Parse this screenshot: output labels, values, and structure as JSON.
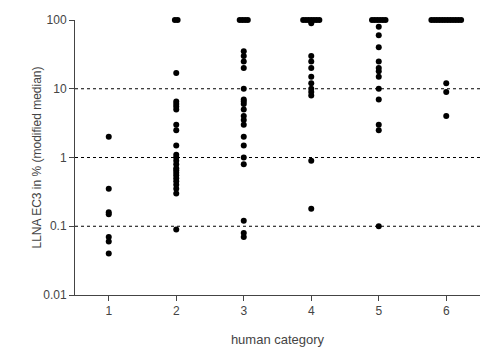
{
  "chart_data": {
    "type": "scatter",
    "xlabel": "human category",
    "ylabel": "LLNA EC3 in % (modified median)",
    "x": [
      1,
      2,
      3,
      4,
      5,
      6
    ],
    "values": [
      [
        0.04,
        0.06,
        0.07,
        0.15,
        0.16,
        0.35,
        2.0
      ],
      [
        0.09,
        0.3,
        0.35,
        0.4,
        0.45,
        0.5,
        0.55,
        0.6,
        0.65,
        0.7,
        0.8,
        0.9,
        1.0,
        1.1,
        1.5,
        2.5,
        3.0,
        5.0,
        5.5,
        6.0,
        6.5,
        17.0,
        100.0,
        100.0
      ],
      [
        0.07,
        0.08,
        0.12,
        0.8,
        1.0,
        1.5,
        2.0,
        3.0,
        3.5,
        4.0,
        5.0,
        6.0,
        6.5,
        7.0,
        10.0,
        20.0,
        25.0,
        30.0,
        35.0,
        100.0,
        100.0,
        100.0,
        100.0
      ],
      [
        0.18,
        0.9,
        8.0,
        9.0,
        10.0,
        12.0,
        15.0,
        20.0,
        25.0,
        30.0,
        90.0,
        100.0,
        100.0,
        100.0,
        100.0,
        100.0,
        100.0,
        100.0
      ],
      [
        0.1,
        2.5,
        3.0,
        7.0,
        10.0,
        15.0,
        18.0,
        20.0,
        25.0,
        40.0,
        60.0,
        80.0,
        100.0,
        100.0,
        100.0,
        100.0,
        100.0,
        100.0
      ],
      [
        4.0,
        9.0,
        12.0,
        100.0,
        100.0,
        100.0,
        100.0,
        100.0,
        100.0,
        100.0,
        100.0,
        100.0,
        100.0,
        100.0,
        100.0
      ]
    ],
    "color": "#000000",
    "marker": "circle",
    "log": "y",
    "xlim": [
      0.5,
      6.5
    ],
    "xticks": [
      1,
      2,
      3,
      4,
      5,
      6
    ],
    "ylim": [
      0.01,
      100
    ],
    "yticks": [
      0.01,
      0.1,
      1,
      10,
      100
    ],
    "hlines": [
      0.1,
      1.0,
      10.0
    ],
    "grid": false
  }
}
